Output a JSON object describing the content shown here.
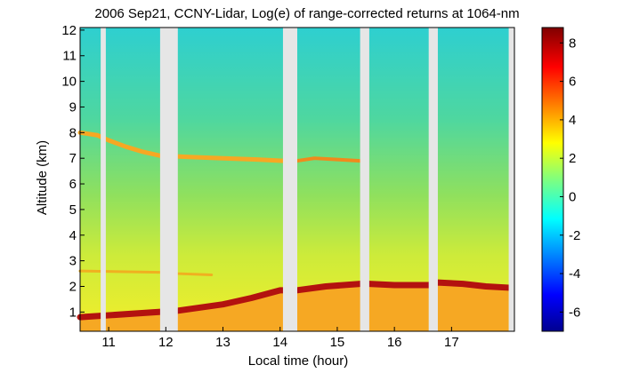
{
  "chart_data": {
    "type": "heatmap",
    "title": "2006 Sep21, CCNY-Lidar, Log(e) of range-corrected returns at 1064-nm",
    "xlabel": "Local time (hour)",
    "ylabel": "Altitude (km)",
    "xlim": [
      10.5,
      18.1
    ],
    "ylim": [
      0.25,
      12.1
    ],
    "xticks": [
      "11",
      "12",
      "13",
      "14",
      "15",
      "16",
      "17"
    ],
    "yticks": [
      "1",
      "2",
      "3",
      "4",
      "5",
      "6",
      "7",
      "8",
      "9",
      "10",
      "11",
      "12"
    ],
    "colorbar": {
      "range": [
        -7,
        8.8
      ],
      "ticks": [
        "-6",
        "-4",
        "-2",
        "0",
        "2",
        "4",
        "6",
        "8"
      ]
    },
    "data_gaps_hours": [
      [
        10.86,
        10.95
      ],
      [
        11.9,
        12.21
      ],
      [
        14.05,
        14.3
      ],
      [
        15.4,
        15.56
      ],
      [
        16.6,
        16.76
      ],
      [
        18.0,
        18.1
      ]
    ],
    "features": [
      {
        "kind": "aerosol_layer",
        "points": [
          [
            10.5,
            8.0
          ],
          [
            10.8,
            7.9
          ],
          [
            11.0,
            7.7
          ],
          [
            11.3,
            7.45
          ],
          [
            11.6,
            7.25
          ],
          [
            11.9,
            7.1
          ],
          [
            12.4,
            7.05
          ],
          [
            13.0,
            7.0
          ],
          [
            13.6,
            6.95
          ],
          [
            14.05,
            6.9
          ]
        ]
      },
      {
        "kind": "cloud_layer",
        "points": [
          [
            14.3,
            6.9
          ],
          [
            14.6,
            7.0
          ],
          [
            15.0,
            6.95
          ],
          [
            15.4,
            6.9
          ]
        ]
      },
      {
        "kind": "boundary_layer_top",
        "points": [
          [
            10.5,
            0.8
          ],
          [
            12.2,
            1.05
          ],
          [
            13.0,
            1.3
          ],
          [
            13.5,
            1.55
          ],
          [
            14.0,
            1.85
          ],
          [
            14.3,
            1.85
          ],
          [
            14.8,
            2.0
          ],
          [
            15.4,
            2.1
          ],
          [
            15.56,
            2.1
          ],
          [
            16.0,
            2.05
          ],
          [
            16.6,
            2.05
          ],
          [
            16.76,
            2.15
          ],
          [
            17.2,
            2.1
          ],
          [
            17.6,
            2.0
          ],
          [
            18.0,
            1.95
          ]
        ]
      },
      {
        "kind": "residual_layer",
        "points": [
          [
            10.5,
            2.6
          ],
          [
            11.9,
            2.55
          ],
          [
            12.2,
            2.5
          ],
          [
            12.8,
            2.45
          ]
        ]
      }
    ]
  }
}
